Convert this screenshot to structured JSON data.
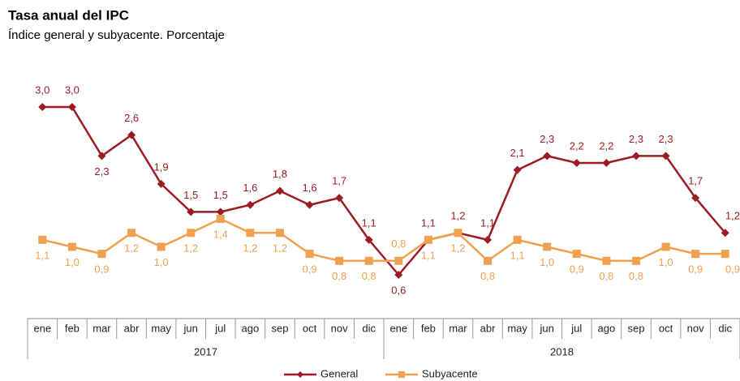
{
  "chart_data": {
    "type": "line",
    "title": "Tasa anual del IPC",
    "subtitle": "Índice general y subyacente. Porcentaje",
    "categories": [
      "ene",
      "feb",
      "mar",
      "abr",
      "may",
      "jun",
      "jul",
      "ago",
      "sep",
      "oct",
      "nov",
      "dic",
      "ene",
      "feb",
      "mar",
      "abr",
      "may",
      "jun",
      "jul",
      "ago",
      "sep",
      "oct",
      "nov",
      "dic"
    ],
    "years": [
      "2017",
      "2018"
    ],
    "series": [
      {
        "name": "General",
        "color": "#9b1c22",
        "values": [
          3.0,
          3.0,
          2.3,
          2.6,
          1.9,
          1.5,
          1.5,
          1.6,
          1.8,
          1.6,
          1.7,
          1.1,
          0.6,
          1.1,
          1.2,
          1.1,
          2.1,
          2.3,
          2.2,
          2.2,
          2.3,
          2.3,
          1.7,
          1.2
        ],
        "value_labels": [
          "3,0",
          "3,0",
          "2,3",
          "2,6",
          "1,9",
          "1,5",
          "1,5",
          "1,6",
          "1,8",
          "1,6",
          "1,7",
          "1,1",
          "0,6",
          "1,1",
          "1,2",
          "1,1",
          "2,1",
          "2,3",
          "2,2",
          "2,2",
          "2,3",
          "2,3",
          "1,7",
          "1,2"
        ]
      },
      {
        "name": "Subyacente",
        "color": "#f0a050",
        "values": [
          1.1,
          1.0,
          0.9,
          1.2,
          1.0,
          1.2,
          1.4,
          1.2,
          1.2,
          0.9,
          0.8,
          0.8,
          0.8,
          1.1,
          1.2,
          0.8,
          1.1,
          1.0,
          0.9,
          0.8,
          0.8,
          1.0,
          0.9,
          0.9
        ],
        "value_labels": [
          "1,1",
          "1,0",
          "0,9",
          "1,2",
          "1,0",
          "1,2",
          "1,4",
          "1,2",
          "1,2",
          "0,9",
          "0,8",
          "0,8",
          "0,8",
          "1,1",
          "1,2",
          "0,8",
          "1,1",
          "1,0",
          "0,9",
          "0,8",
          "0,8",
          "1,0",
          "0,9",
          "0,9"
        ]
      }
    ],
    "legend": "bottom"
  }
}
